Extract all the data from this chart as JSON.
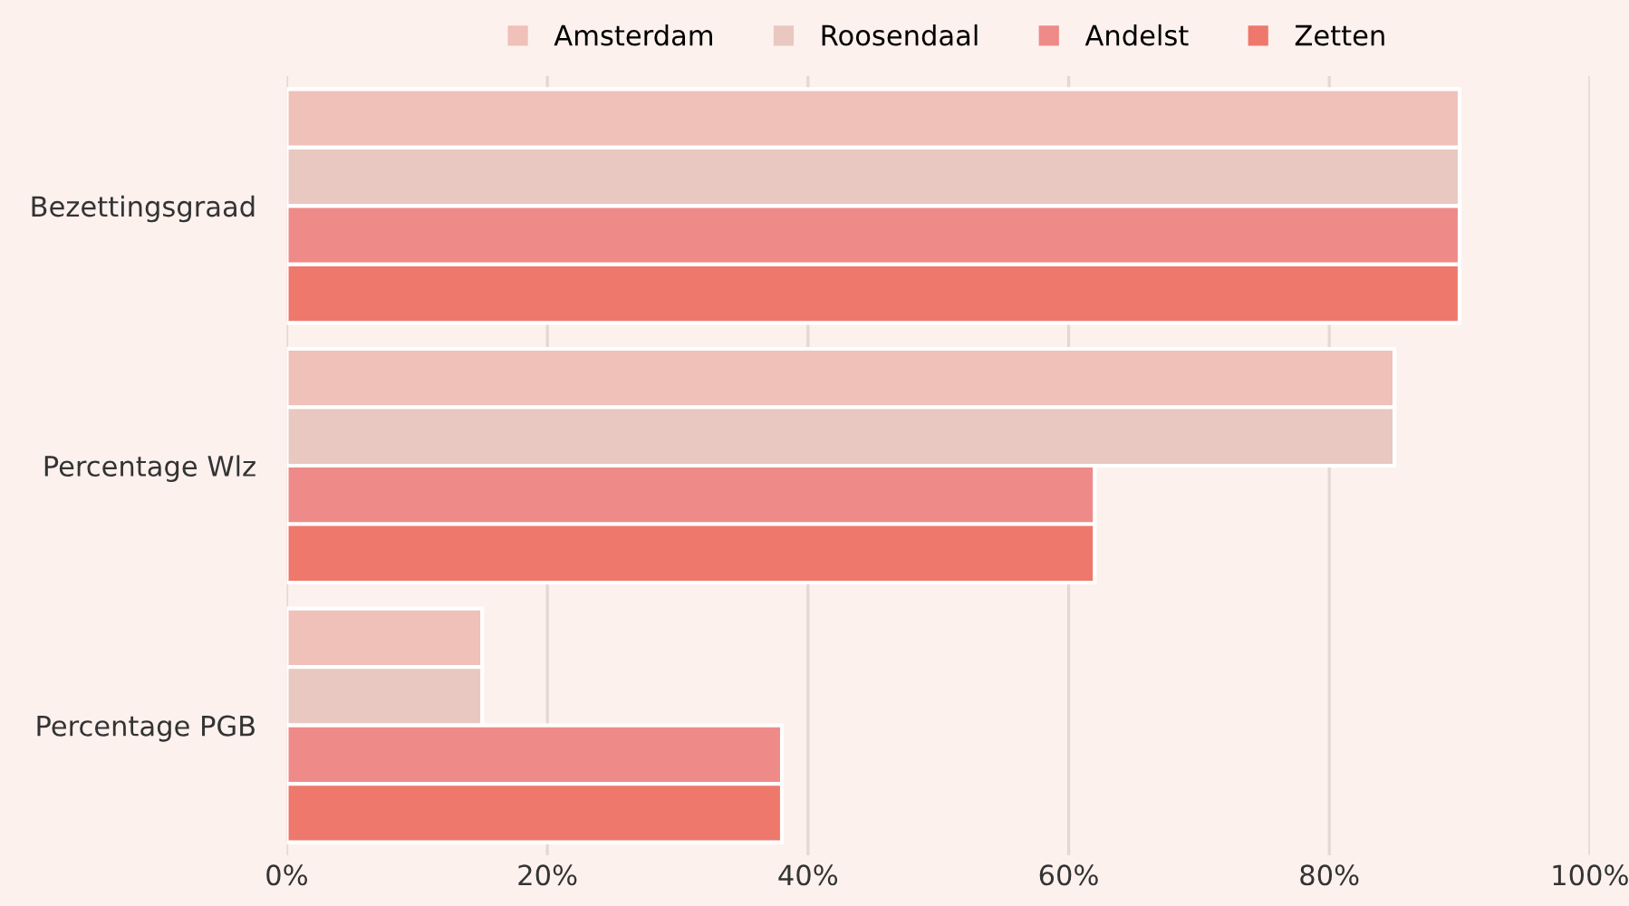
{
  "chart_data": {
    "type": "bar",
    "orientation": "horizontal",
    "categories": [
      "Bezettingsgraad",
      "Percentage Wlz",
      "Percentage PGB"
    ],
    "series": [
      {
        "name": "Amsterdam",
        "color": "#efc1b8",
        "values": [
          90,
          85,
          15
        ]
      },
      {
        "name": "Roosendaal",
        "color": "#e8c8c0",
        "values": [
          90,
          85,
          15
        ]
      },
      {
        "name": "Andelst",
        "color": "#ee8a88",
        "values": [
          90,
          62,
          38
        ]
      },
      {
        "name": "Zetten",
        "color": "#ee786c",
        "values": [
          90,
          62,
          38
        ]
      }
    ],
    "xlim": [
      0,
      100
    ],
    "xticks": [
      {
        "value": 0,
        "label": "0%"
      },
      {
        "value": 20,
        "label": "20%"
      },
      {
        "value": 40,
        "label": "40%"
      },
      {
        "value": 60,
        "label": "60%"
      },
      {
        "value": 80,
        "label": "80%"
      },
      {
        "value": 100,
        "label": "100%"
      }
    ],
    "grid": "x",
    "legend": "top",
    "marker": "square"
  }
}
